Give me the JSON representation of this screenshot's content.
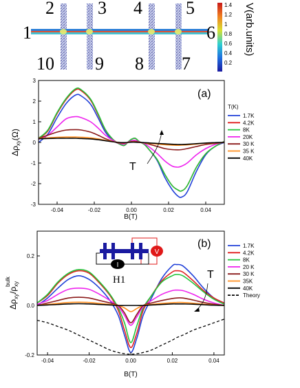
{
  "colors": {
    "1.7K": "#1f3fd8",
    "4.2K": "#e02020",
    "8K": "#22c43a",
    "20K": "#ee22ee",
    "30K": "#8b1a1a",
    "35K": "#ff8c1a",
    "40K": "#000000",
    "theory": "#000000",
    "inset_h1_dark": "#1a1aa0",
    "inset_v": "#e01818",
    "inset_i": "#000000"
  },
  "top_schematic": {
    "terminals": [
      "1",
      "2",
      "3",
      "4",
      "5",
      "6",
      "7",
      "8",
      "9",
      "10"
    ],
    "colorbar": {
      "label": "V(arb.units)",
      "ticks": [
        "1.4",
        "1.2",
        "1",
        "0.8",
        "0.6",
        "0.4",
        "0.2"
      ]
    }
  },
  "chart_data": [
    {
      "type": "line",
      "panel_label": "(a)",
      "xlabel": "B(T)",
      "ylabel_main": "Δρ",
      "ylabel_sub": "xy",
      "ylabel_unit": "(Ω)",
      "xlim": [
        -0.05,
        0.05
      ],
      "ylim": [
        -3,
        3
      ],
      "xticks": [
        "-0.04",
        "-0.02",
        "0.00",
        "0.02",
        "0.04"
      ],
      "xtick_values": [
        -0.04,
        -0.02,
        0.0,
        0.02,
        0.04
      ],
      "yticks": [
        "3",
        "2",
        "1",
        "0",
        "-1",
        "-2",
        "-3"
      ],
      "ytick_values": [
        3,
        2,
        1,
        0,
        -1,
        -2,
        -3
      ],
      "legend_title": "T(K)",
      "annotation": "T",
      "x": [
        -0.05,
        -0.045,
        -0.04,
        -0.035,
        -0.03,
        -0.027,
        -0.022,
        -0.018,
        -0.014,
        -0.01,
        -0.007,
        -0.004,
        -0.002,
        0.0,
        0.002,
        0.004,
        0.007,
        0.01,
        0.014,
        0.018,
        0.022,
        0.025,
        0.027,
        0.03,
        0.035,
        0.04,
        0.045,
        0.05
      ],
      "series": [
        {
          "name": "1.7K",
          "color_key": "1.7K",
          "values": [
            0.0,
            0.4,
            1.2,
            1.9,
            2.3,
            2.25,
            1.85,
            1.2,
            0.5,
            0.1,
            -0.05,
            -0.15,
            0.0,
            0.15,
            0.2,
            0.05,
            -0.1,
            -0.4,
            -0.9,
            -1.7,
            -2.3,
            -2.6,
            -2.65,
            -2.4,
            -1.4,
            -0.6,
            -0.2,
            0.0
          ]
        },
        {
          "name": "4.2K",
          "color_key": "4.2K",
          "values": [
            0.2,
            0.55,
            1.4,
            2.1,
            2.55,
            2.5,
            2.05,
            1.35,
            0.6,
            0.15,
            -0.05,
            -0.15,
            0.0,
            0.15,
            0.2,
            0.05,
            -0.1,
            -0.4,
            -0.85,
            -1.55,
            -2.1,
            -2.3,
            -2.35,
            -2.1,
            -1.2,
            -0.55,
            -0.2,
            0.05
          ]
        },
        {
          "name": "8K",
          "color_key": "8K",
          "values": [
            0.2,
            0.6,
            1.45,
            2.15,
            2.6,
            2.55,
            2.1,
            1.4,
            0.62,
            0.15,
            -0.05,
            -0.15,
            0.0,
            0.15,
            0.2,
            0.05,
            -0.1,
            -0.4,
            -0.85,
            -1.55,
            -2.1,
            -2.3,
            -2.35,
            -2.1,
            -1.2,
            -0.55,
            -0.2,
            0.05
          ]
        },
        {
          "name": "20K",
          "color_key": "20K",
          "values": [
            0.15,
            0.35,
            0.75,
            1.15,
            1.25,
            1.2,
            1.0,
            0.7,
            0.35,
            0.1,
            -0.03,
            -0.08,
            0.0,
            0.08,
            0.1,
            0.03,
            -0.06,
            -0.25,
            -0.55,
            -0.9,
            -1.15,
            -1.2,
            -1.15,
            -1.0,
            -0.6,
            -0.3,
            -0.1,
            0.02
          ]
        },
        {
          "name": "30 K",
          "color_key": "30K",
          "values": [
            0.2,
            0.35,
            0.5,
            0.6,
            0.62,
            0.6,
            0.5,
            0.35,
            0.18,
            0.05,
            -0.02,
            -0.04,
            0.0,
            0.04,
            0.05,
            0.02,
            -0.03,
            -0.1,
            -0.2,
            -0.3,
            -0.35,
            -0.36,
            -0.35,
            -0.3,
            -0.2,
            -0.1,
            -0.05,
            0.0
          ]
        },
        {
          "name": "35 K",
          "color_key": "35K",
          "values": [
            0.2,
            0.22,
            0.25,
            0.26,
            0.26,
            0.25,
            0.22,
            0.17,
            0.1,
            0.04,
            0.0,
            -0.02,
            0.0,
            0.02,
            0.02,
            0.0,
            -0.02,
            -0.05,
            -0.08,
            -0.11,
            -0.13,
            -0.14,
            -0.13,
            -0.12,
            -0.08,
            -0.04,
            -0.02,
            0.0
          ]
        },
        {
          "name": "40K",
          "color_key": "40K",
          "values": [
            0.18,
            0.19,
            0.2,
            0.2,
            0.2,
            0.19,
            0.17,
            0.13,
            0.08,
            0.03,
            0.0,
            -0.01,
            0.0,
            0.01,
            0.01,
            0.0,
            -0.01,
            -0.03,
            -0.05,
            -0.07,
            -0.09,
            -0.1,
            -0.1,
            -0.09,
            -0.06,
            -0.03,
            -0.01,
            0.0
          ]
        }
      ]
    },
    {
      "type": "line",
      "panel_label": "(b)",
      "xlabel": "B(T)",
      "ylabel_main": "Δρ",
      "ylabel_sub": "xy",
      "ylabel_div": "/ρ",
      "ylabel_sub2": "xy",
      "ylabel_sup": "bulk",
      "xlim": [
        -0.045,
        0.045
      ],
      "ylim": [
        -0.2,
        0.3
      ],
      "xticks": [
        "-0.04",
        "-0.02",
        "0.00",
        "0.02",
        "0.04"
      ],
      "xtick_values": [
        -0.04,
        -0.02,
        0.0,
        0.02,
        0.04
      ],
      "yticks": [
        "0.2",
        "0.0",
        "-0.2"
      ],
      "ytick_values": [
        0.2,
        0.0,
        -0.2
      ],
      "annotation": "T",
      "inset_label": "H1",
      "inset_v": "V",
      "inset_i": "I",
      "x": [
        -0.045,
        -0.04,
        -0.035,
        -0.03,
        -0.025,
        -0.02,
        -0.015,
        -0.01,
        -0.006,
        -0.003,
        0.0,
        0.003,
        0.006,
        0.01,
        0.015,
        0.02,
        0.022,
        0.025,
        0.03,
        0.035,
        0.04,
        0.045
      ],
      "series": [
        {
          "name": "1.7K",
          "color_key": "1.7K",
          "values": [
            0.0,
            0.03,
            0.07,
            0.105,
            0.12,
            0.105,
            0.07,
            0.02,
            -0.04,
            -0.12,
            -0.19,
            -0.13,
            -0.04,
            0.03,
            0.11,
            0.16,
            0.165,
            0.16,
            0.12,
            0.07,
            0.03,
            0.01
          ]
        },
        {
          "name": "4.2K",
          "color_key": "4.2K",
          "values": [
            0.01,
            0.04,
            0.09,
            0.125,
            0.14,
            0.13,
            0.09,
            0.04,
            -0.02,
            -0.1,
            -0.17,
            -0.11,
            -0.02,
            0.04,
            0.1,
            0.135,
            0.14,
            0.135,
            0.1,
            0.06,
            0.03,
            0.01
          ]
        },
        {
          "name": "8K",
          "color_key": "8K",
          "values": [
            0.01,
            0.045,
            0.095,
            0.13,
            0.145,
            0.135,
            0.095,
            0.045,
            -0.01,
            -0.07,
            -0.15,
            -0.08,
            -0.01,
            0.04,
            0.095,
            0.12,
            0.125,
            0.12,
            0.09,
            0.055,
            0.025,
            0.005
          ]
        },
        {
          "name": "20 K",
          "color_key": "20K",
          "values": [
            0.005,
            0.02,
            0.045,
            0.065,
            0.07,
            0.065,
            0.045,
            0.02,
            -0.005,
            -0.04,
            -0.08,
            -0.045,
            -0.005,
            0.02,
            0.045,
            0.06,
            0.062,
            0.06,
            0.045,
            0.025,
            0.01,
            0.0
          ]
        },
        {
          "name": "30 K",
          "color_key": "30K",
          "values": [
            0.0,
            0.01,
            0.02,
            0.03,
            0.033,
            0.03,
            0.02,
            0.01,
            0.0,
            -0.03,
            -0.07,
            -0.035,
            0.0,
            0.01,
            0.02,
            0.028,
            0.03,
            0.03,
            0.022,
            0.012,
            0.005,
            0.0
          ]
        },
        {
          "name": "35K",
          "color_key": "35K",
          "values": [
            0.0,
            0.004,
            0.008,
            0.012,
            0.013,
            0.012,
            0.008,
            0.004,
            0.0,
            -0.01,
            -0.025,
            -0.012,
            0.0,
            0.004,
            0.008,
            0.011,
            0.012,
            0.012,
            0.009,
            0.005,
            0.002,
            0.0
          ]
        },
        {
          "name": "40K",
          "color_key": "40K",
          "values": [
            0.0,
            0.002,
            0.004,
            0.006,
            0.007,
            0.006,
            0.004,
            0.002,
            0.0,
            0.0,
            0.0,
            0.0,
            0.0,
            0.002,
            0.004,
            0.006,
            0.006,
            0.006,
            0.005,
            0.003,
            0.001,
            0.0
          ]
        },
        {
          "name": "Theory",
          "color_key": "theory",
          "dashed": true,
          "values": [
            -0.06,
            -0.07,
            -0.085,
            -0.1,
            -0.12,
            -0.14,
            -0.16,
            -0.18,
            -0.19,
            -0.195,
            -0.197,
            -0.195,
            -0.19,
            -0.18,
            -0.16,
            -0.14,
            -0.13,
            -0.12,
            -0.1,
            -0.085,
            -0.07,
            -0.055
          ]
        }
      ]
    }
  ]
}
